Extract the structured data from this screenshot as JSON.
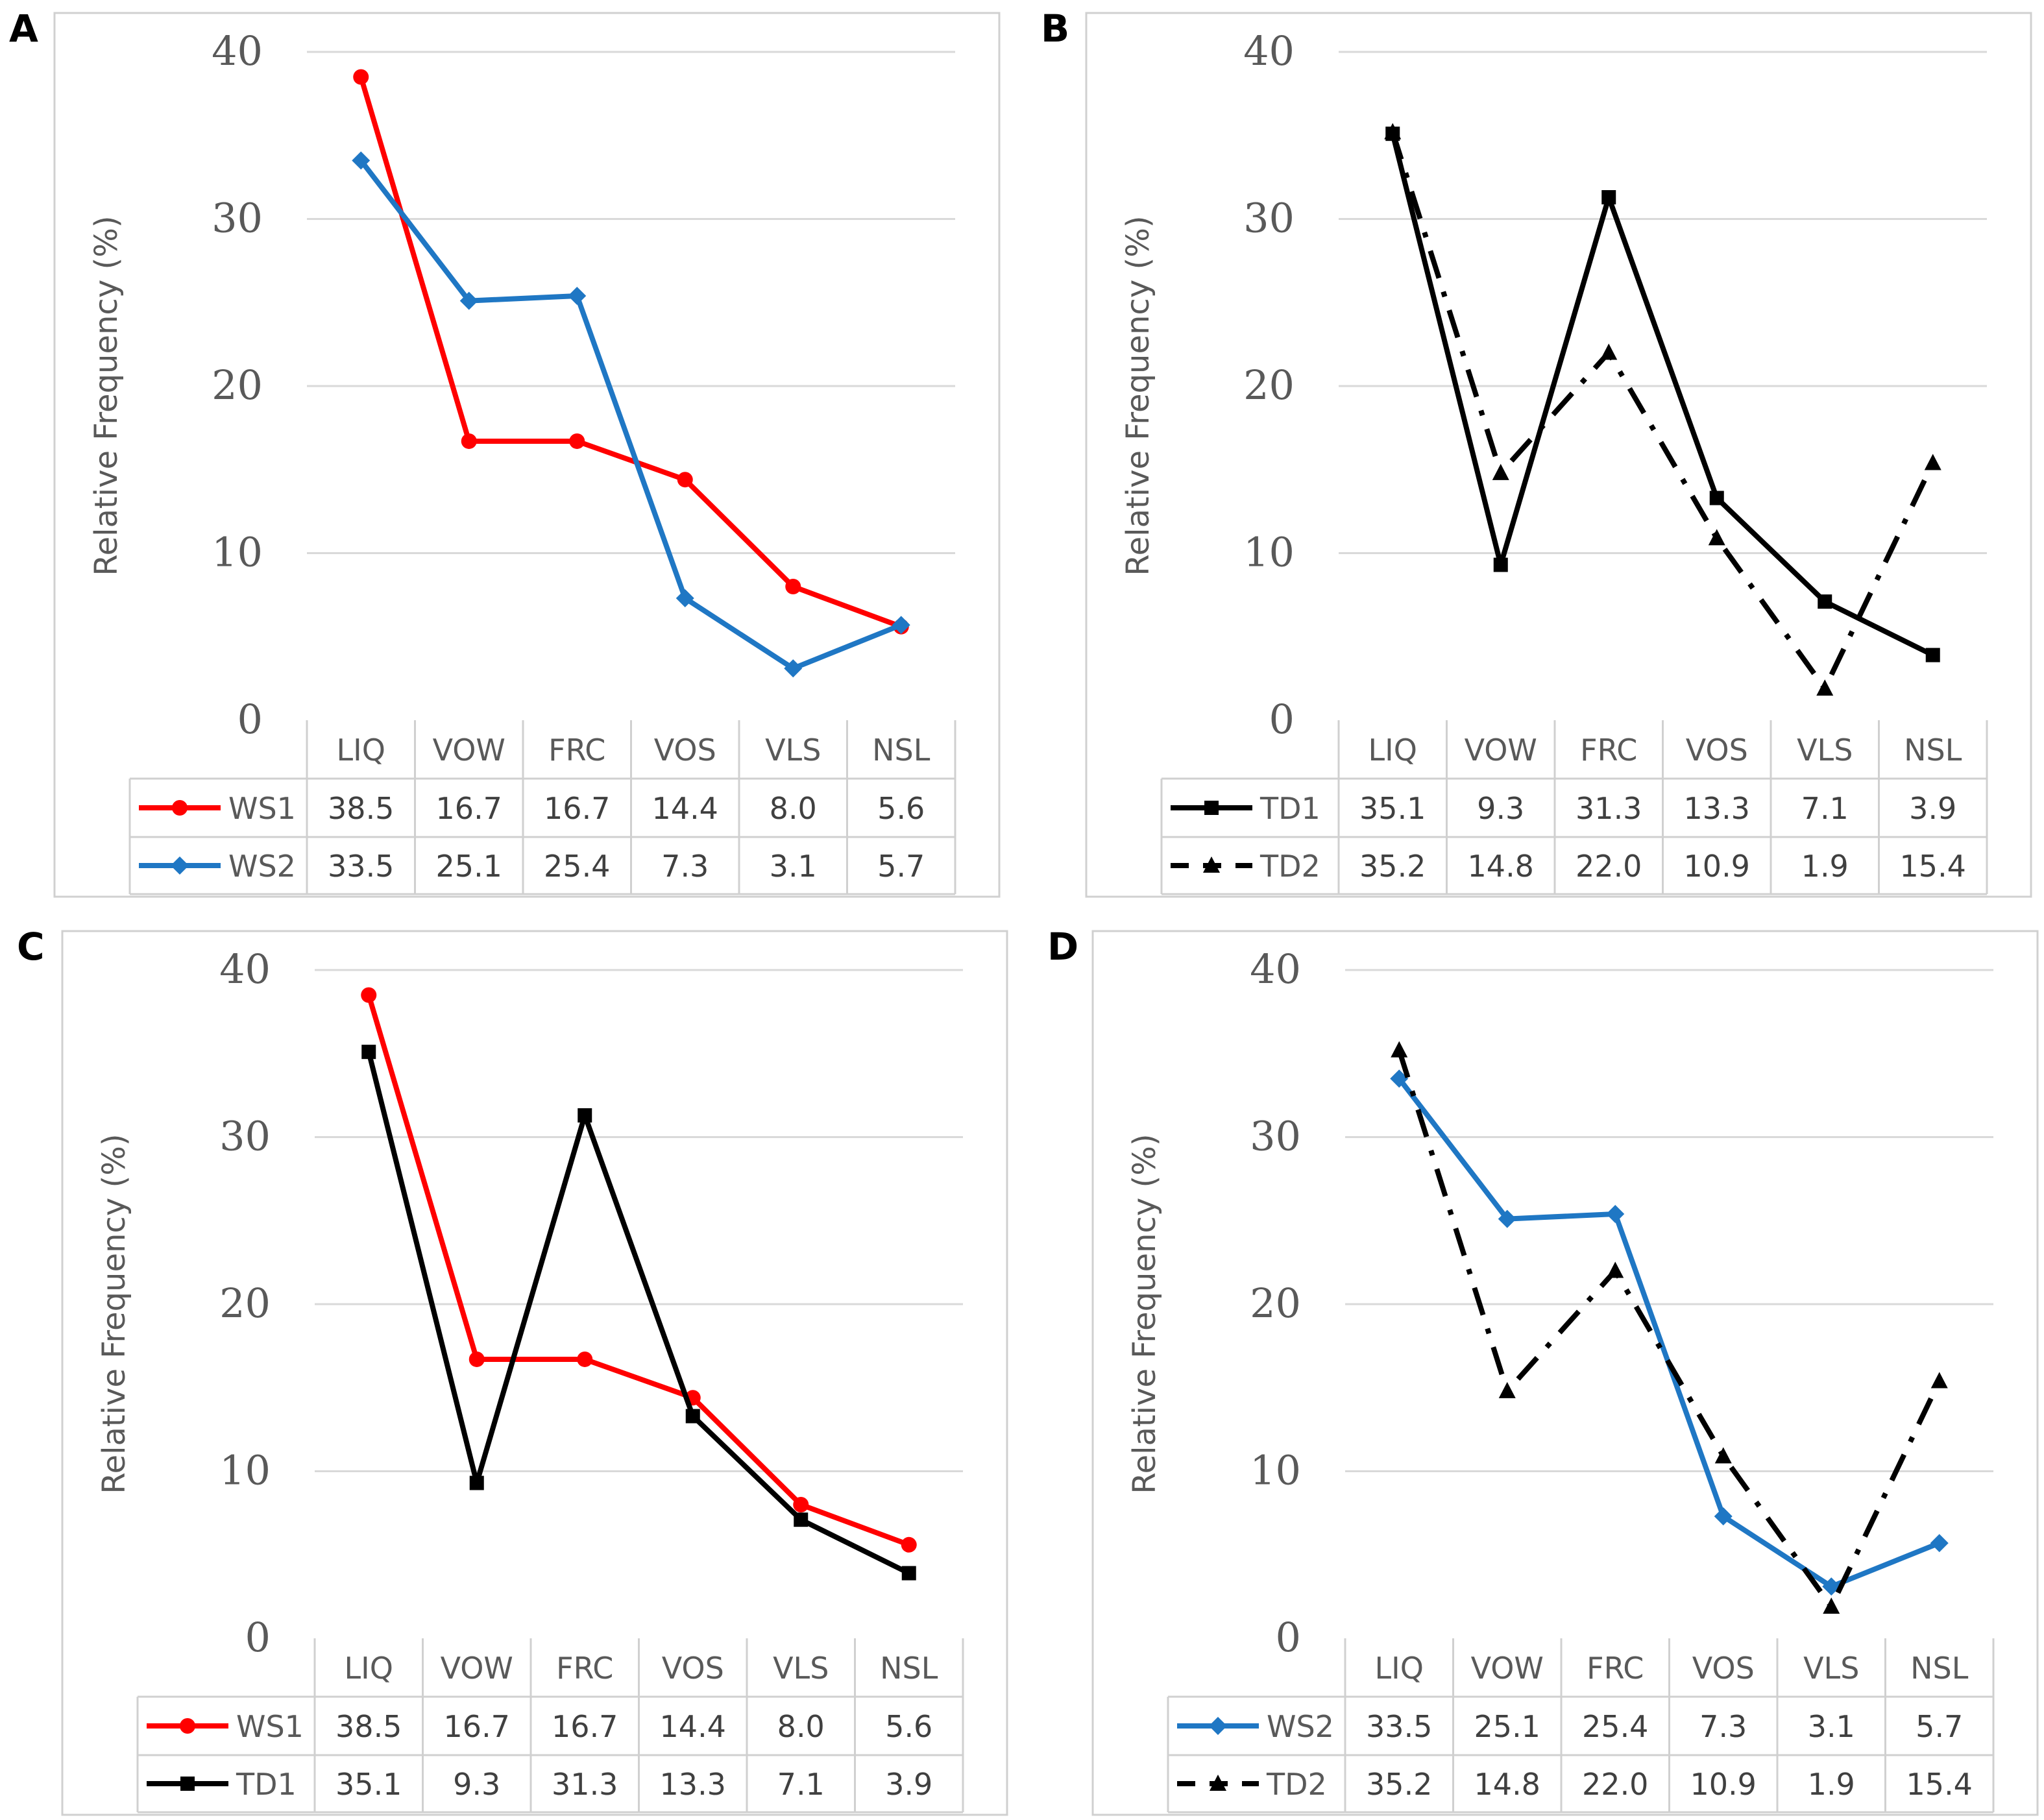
{
  "charts": [
    {
      "panel_label": "A",
      "ylabel": "Relative Frequency (%)",
      "yticks": [
        "0",
        "10",
        "20",
        "30",
        "40"
      ],
      "categories": [
        "LIQ",
        "VOW",
        "FRC",
        "VOS",
        "VLS",
        "NSL"
      ],
      "series": [
        {
          "name": "WS1",
          "values": [
            38.5,
            16.7,
            16.7,
            14.4,
            8.0,
            5.6
          ],
          "display": [
            "38.5",
            "16.7",
            "16.7",
            "14.4",
            "8.0",
            "5.6"
          ],
          "color": "#ff0000",
          "marker": "circle",
          "dash": "solid"
        },
        {
          "name": "WS2",
          "values": [
            33.5,
            25.1,
            25.4,
            7.3,
            3.1,
            5.7
          ],
          "display": [
            "33.5",
            "25.1",
            "25.4",
            "7.3",
            "3.1",
            "5.7"
          ],
          "color": "#1f77c4",
          "marker": "diamond",
          "dash": "solid"
        }
      ]
    },
    {
      "panel_label": "B",
      "ylabel": "Relative Frequency (%)",
      "yticks": [
        "0",
        "10",
        "20",
        "30",
        "40"
      ],
      "categories": [
        "LIQ",
        "VOW",
        "FRC",
        "VOS",
        "VLS",
        "NSL"
      ],
      "series": [
        {
          "name": "TD1",
          "values": [
            35.1,
            9.3,
            31.3,
            13.3,
            7.1,
            3.9
          ],
          "display": [
            "35.1",
            "9.3",
            "31.3",
            "13.3",
            "7.1",
            "3.9"
          ],
          "color": "#000000",
          "marker": "square",
          "dash": "solid"
        },
        {
          "name": "TD2",
          "values": [
            35.2,
            14.8,
            22.0,
            10.9,
            1.9,
            15.4
          ],
          "display": [
            "35.2",
            "14.8",
            "22.0",
            "10.9",
            "1.9",
            "15.4"
          ],
          "color": "#000000",
          "marker": "triangle",
          "dash": "dashdot"
        }
      ]
    },
    {
      "panel_label": "C",
      "ylabel": "Relative Frequency (%)",
      "yticks": [
        "0",
        "10",
        "20",
        "30",
        "40"
      ],
      "categories": [
        "LIQ",
        "VOW",
        "FRC",
        "VOS",
        "VLS",
        "NSL"
      ],
      "series": [
        {
          "name": "WS1",
          "values": [
            38.5,
            16.7,
            16.7,
            14.4,
            8.0,
            5.6
          ],
          "display": [
            "38.5",
            "16.7",
            "16.7",
            "14.4",
            "8.0",
            "5.6"
          ],
          "color": "#ff0000",
          "marker": "circle",
          "dash": "solid"
        },
        {
          "name": "TD1",
          "values": [
            35.1,
            9.3,
            31.3,
            13.3,
            7.1,
            3.9
          ],
          "display": [
            "35.1",
            "9.3",
            "31.3",
            "13.3",
            "7.1",
            "3.9"
          ],
          "color": "#000000",
          "marker": "square",
          "dash": "solid"
        }
      ]
    },
    {
      "panel_label": "D",
      "ylabel": "Relative Frequency (%)",
      "yticks": [
        "0",
        "10",
        "20",
        "30",
        "40"
      ],
      "categories": [
        "LIQ",
        "VOW",
        "FRC",
        "VOS",
        "VLS",
        "NSL"
      ],
      "series": [
        {
          "name": "WS2",
          "values": [
            33.5,
            25.1,
            25.4,
            7.3,
            3.1,
            5.7
          ],
          "display": [
            "33.5",
            "25.1",
            "25.4",
            "7.3",
            "3.1",
            "5.7"
          ],
          "color": "#1f77c4",
          "marker": "diamond",
          "dash": "solid"
        },
        {
          "name": "TD2",
          "values": [
            35.2,
            14.8,
            22.0,
            10.9,
            1.9,
            15.4
          ],
          "display": [
            "35.2",
            "14.8",
            "22.0",
            "10.9",
            "1.9",
            "15.4"
          ],
          "color": "#000000",
          "marker": "triangle",
          "dash": "dashdot"
        }
      ]
    }
  ],
  "chart_data": [
    {
      "type": "line",
      "title": "A",
      "xlabel": "",
      "ylabel": "Relative Frequency (%)",
      "ylim": [
        0,
        40
      ],
      "grid": true,
      "legend": "data-table",
      "categories": [
        "LIQ",
        "VOW",
        "FRC",
        "VOS",
        "VLS",
        "NSL"
      ],
      "series": [
        {
          "name": "WS1",
          "values": [
            38.5,
            16.7,
            16.7,
            14.4,
            8.0,
            5.6
          ]
        },
        {
          "name": "WS2",
          "values": [
            33.5,
            25.1,
            25.4,
            7.3,
            3.1,
            5.7
          ]
        }
      ]
    },
    {
      "type": "line",
      "title": "B",
      "xlabel": "",
      "ylabel": "Relative Frequency (%)",
      "ylim": [
        0,
        40
      ],
      "grid": true,
      "legend": "data-table",
      "categories": [
        "LIQ",
        "VOW",
        "FRC",
        "VOS",
        "VLS",
        "NSL"
      ],
      "series": [
        {
          "name": "TD1",
          "values": [
            35.1,
            9.3,
            31.3,
            13.3,
            7.1,
            3.9
          ]
        },
        {
          "name": "TD2",
          "values": [
            35.2,
            14.8,
            22.0,
            10.9,
            1.9,
            15.4
          ]
        }
      ]
    },
    {
      "type": "line",
      "title": "C",
      "xlabel": "",
      "ylabel": "Relative Frequency (%)",
      "ylim": [
        0,
        40
      ],
      "grid": true,
      "legend": "data-table",
      "categories": [
        "LIQ",
        "VOW",
        "FRC",
        "VOS",
        "VLS",
        "NSL"
      ],
      "series": [
        {
          "name": "WS1",
          "values": [
            38.5,
            16.7,
            16.7,
            14.4,
            8.0,
            5.6
          ]
        },
        {
          "name": "TD1",
          "values": [
            35.1,
            9.3,
            31.3,
            13.3,
            7.1,
            3.9
          ]
        }
      ]
    },
    {
      "type": "line",
      "title": "D",
      "xlabel": "",
      "ylabel": "Relative Frequency (%)",
      "ylim": [
        0,
        40
      ],
      "grid": true,
      "legend": "data-table",
      "categories": [
        "LIQ",
        "VOW",
        "FRC",
        "VOS",
        "VLS",
        "NSL"
      ],
      "series": [
        {
          "name": "WS2",
          "values": [
            33.5,
            25.1,
            25.4,
            7.3,
            3.1,
            5.7
          ]
        },
        {
          "name": "TD2",
          "values": [
            35.2,
            14.8,
            22.0,
            10.9,
            1.9,
            15.4
          ]
        }
      ]
    }
  ]
}
